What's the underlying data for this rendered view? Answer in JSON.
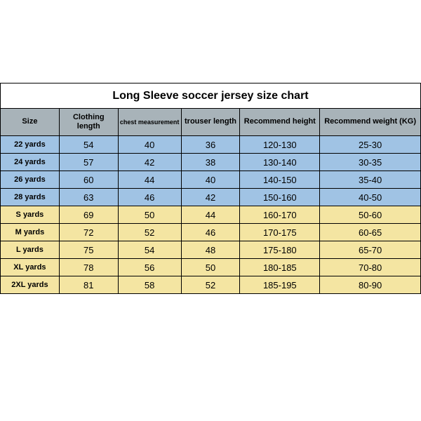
{
  "title": "Long Sleeve soccer jersey size chart",
  "columns": [
    "Size",
    "Clothing length",
    "chest measurement",
    "trouser length",
    "Recommend height",
    "Recommend weight (KG)"
  ],
  "col_widths_pct": [
    14,
    14,
    15,
    14,
    19,
    24
  ],
  "header_bg": "#a8b3b9",
  "row_colors": {
    "blue": "#a0c3e4",
    "yellow": "#f4e5a2"
  },
  "border_color": "#000000",
  "title_fontsize": 16,
  "header_fontsize": 11,
  "cell_fontsize": 13,
  "rows": [
    {
      "color": "blue",
      "cells": [
        "22 yards",
        "54",
        "40",
        "36",
        "120-130",
        "25-30"
      ]
    },
    {
      "color": "blue",
      "cells": [
        "24 yards",
        "57",
        "42",
        "38",
        "130-140",
        "30-35"
      ]
    },
    {
      "color": "blue",
      "cells": [
        "26 yards",
        "60",
        "44",
        "40",
        "140-150",
        "35-40"
      ]
    },
    {
      "color": "blue",
      "cells": [
        "28 yards",
        "63",
        "46",
        "42",
        "150-160",
        "40-50"
      ]
    },
    {
      "color": "yellow",
      "cells": [
        "S yards",
        "69",
        "50",
        "44",
        "160-170",
        "50-60"
      ]
    },
    {
      "color": "yellow",
      "cells": [
        "M yards",
        "72",
        "52",
        "46",
        "170-175",
        "60-65"
      ]
    },
    {
      "color": "yellow",
      "cells": [
        "L yards",
        "75",
        "54",
        "48",
        "175-180",
        "65-70"
      ]
    },
    {
      "color": "yellow",
      "cells": [
        "XL yards",
        "78",
        "56",
        "50",
        "180-185",
        "70-80"
      ]
    },
    {
      "color": "yellow",
      "cells": [
        "2XL yards",
        "81",
        "58",
        "52",
        "185-195",
        "80-90"
      ]
    }
  ]
}
